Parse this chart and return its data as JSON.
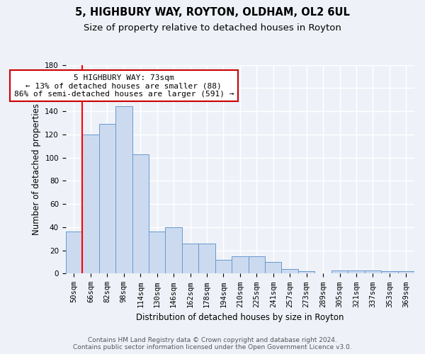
{
  "title1": "5, HIGHBURY WAY, ROYTON, OLDHAM, OL2 6UL",
  "title2": "Size of property relative to detached houses in Royton",
  "xlabel": "Distribution of detached houses by size in Royton",
  "ylabel": "Number of detached properties",
  "bar_values": [
    36,
    120,
    129,
    144,
    103,
    36,
    40,
    26,
    26,
    12,
    15,
    15,
    10,
    4,
    2,
    0,
    3,
    3,
    3,
    2,
    2
  ],
  "bin_labels": [
    "50sqm",
    "66sqm",
    "82sqm",
    "98sqm",
    "114sqm",
    "130sqm",
    "146sqm",
    "162sqm",
    "178sqm",
    "194sqm",
    "210sqm",
    "225sqm",
    "241sqm",
    "257sqm",
    "273sqm",
    "289sqm",
    "305sqm",
    "321sqm",
    "337sqm",
    "353sqm",
    "369sqm"
  ],
  "bar_color": "#ccdaf0",
  "bar_edge_color": "#6699cc",
  "annotation_line1": "5 HIGHBURY WAY: 73sqm",
  "annotation_line2": "← 13% of detached houses are smaller (88)",
  "annotation_line3": "86% of semi-detached houses are larger (591) →",
  "annotation_box_color": "#ffffff",
  "annotation_box_edge": "#cc0000",
  "red_line_x": 0.5,
  "ylim": [
    0,
    180
  ],
  "yticks": [
    0,
    20,
    40,
    60,
    80,
    100,
    120,
    140,
    160,
    180
  ],
  "footer_line1": "Contains HM Land Registry data © Crown copyright and database right 2024.",
  "footer_line2": "Contains public sector information licensed under the Open Government Licence v3.0.",
  "background_color": "#eef2f8",
  "plot_bg_color": "#eef2f8",
  "grid_color": "#ffffff",
  "title_fontsize": 10.5,
  "subtitle_fontsize": 9.5,
  "axis_label_fontsize": 8.5,
  "tick_fontsize": 7.5,
  "annotation_fontsize": 8,
  "footer_fontsize": 6.5
}
